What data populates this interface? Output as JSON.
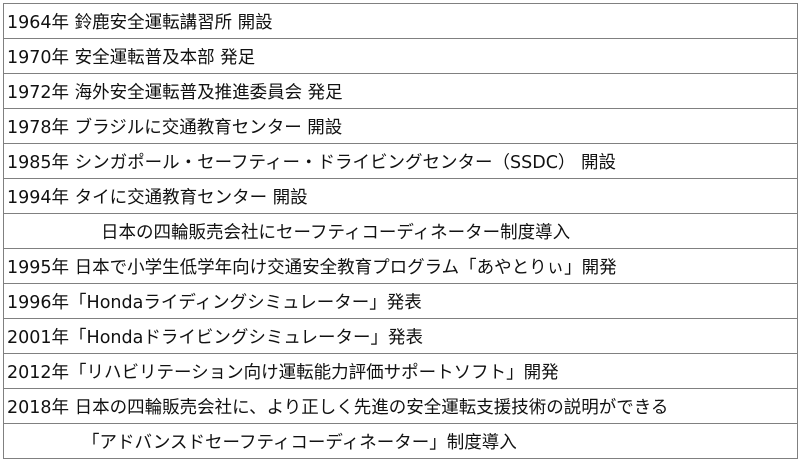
{
  "rows": [
    {
      "text": "1964年 鈴鹿安全運転講習所 開設",
      "continuation": false
    },
    {
      "text": "1970年 安全運転普及本部 発足",
      "continuation": false
    },
    {
      "text": "1972年 海外安全運転普及推進委員会 発足",
      "continuation": false
    },
    {
      "text": "1978年 ブラジルに交通教育センター 開設",
      "continuation": false
    },
    {
      "text": "1985年 シンガポール・セーフティー・ドライビングセンター（SSDC） 開設",
      "continuation": false
    },
    {
      "text": "1994年 タイに交通教育センター 開設",
      "continuation": false
    },
    {
      "text": "日本の四輪販売会社にセーフティコーディネーター制度導入",
      "continuation": true
    },
    {
      "text": "1995年 日本で小学生低学年向け交通安全教育プログラム「あやとりぃ」開発",
      "continuation": false
    },
    {
      "text": "1996年「Hondaライディングシミュレーター」発表",
      "continuation": false
    },
    {
      "text": "2001年「Hondaドライビングシミュレーター」発表",
      "continuation": false
    },
    {
      "text": "2012年「リハビリテーション向け運転能力評価サポートソフト」開発",
      "continuation": false
    },
    {
      "text": "2018年 日本の四輪販売会社に、より正しく先進の安全運転支援技術の説明ができる",
      "continuation": false
    },
    {
      "text": "「アドバンスドセーフティコーディネーター」制度導入",
      "continuation": true
    }
  ]
}
